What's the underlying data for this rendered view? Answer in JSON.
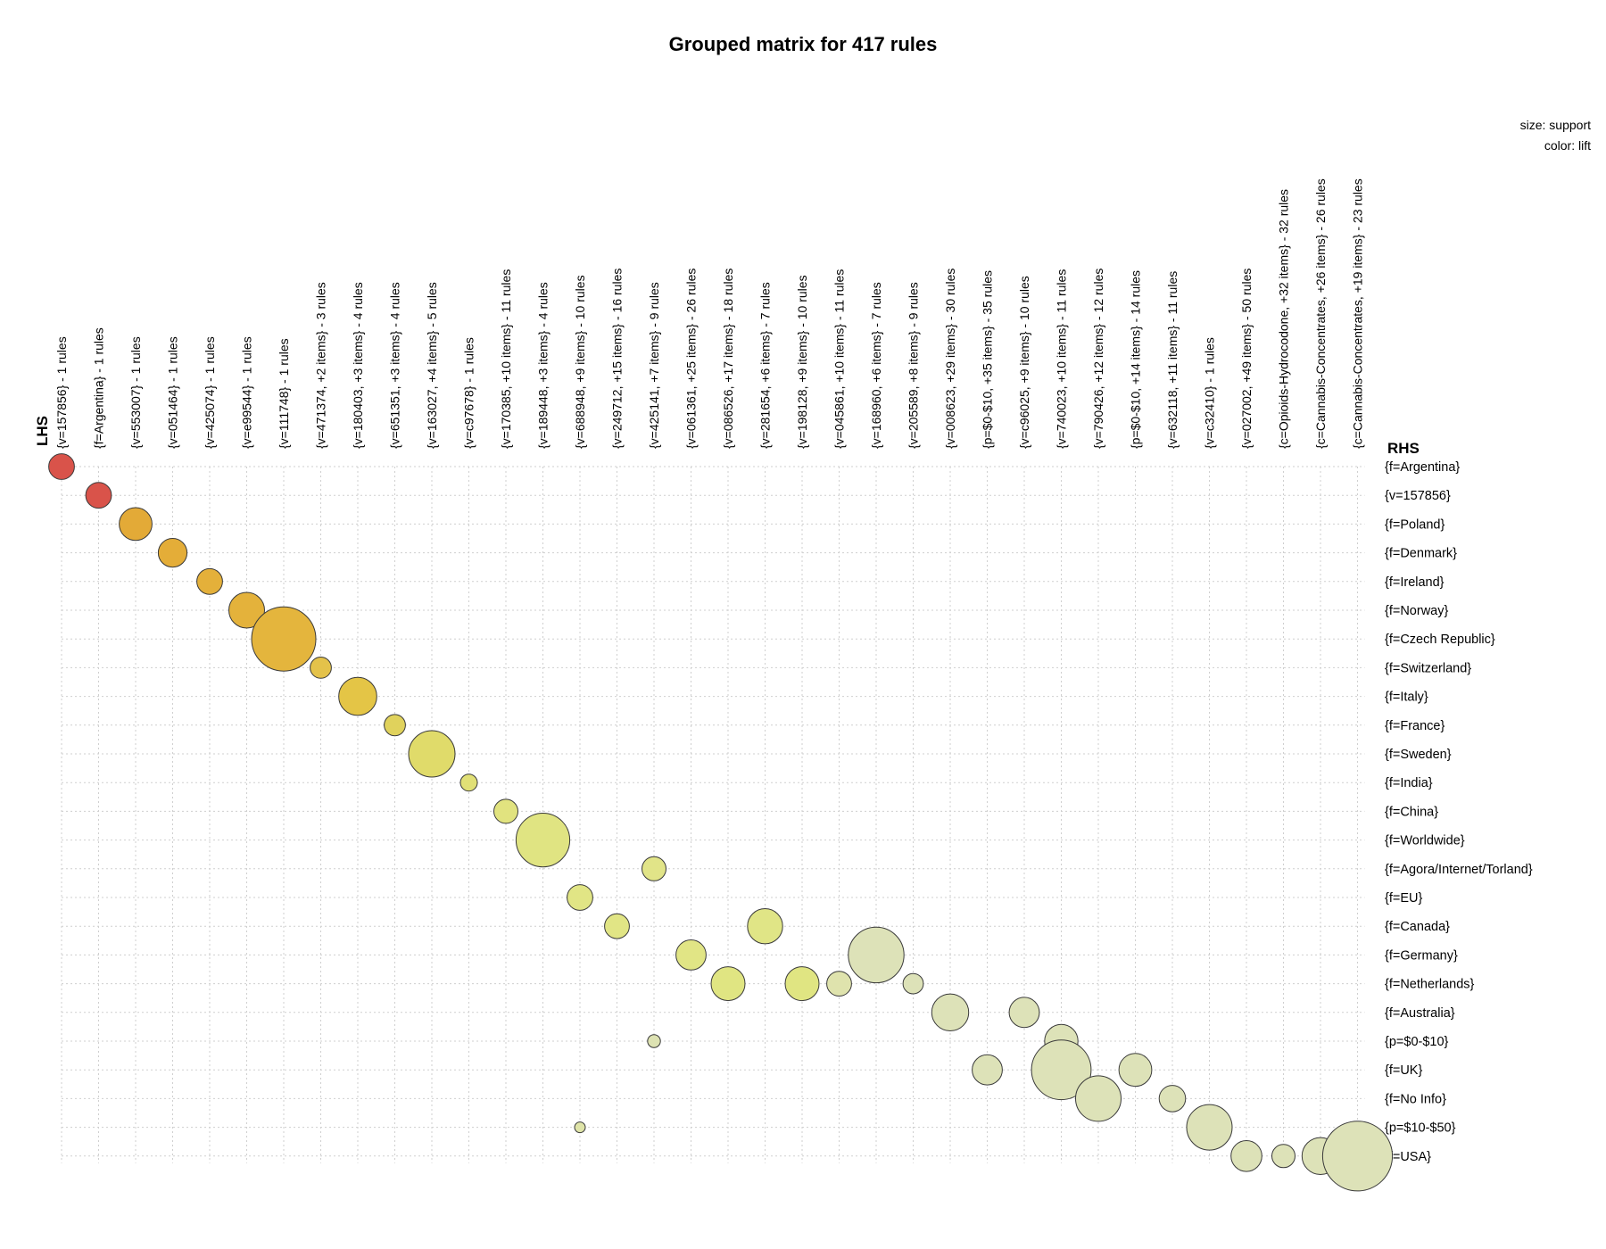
{
  "chart_data": {
    "type": "scatter",
    "title": "Grouped matrix for 417 rules",
    "lhs_label": "LHS",
    "rhs_label": "RHS",
    "legend": {
      "size": "size: support",
      "color": "color: lift"
    },
    "lhs_groups": [
      "{v=157856} - 1 rules",
      "{f=Argentina} - 1 rules",
      "{v=553007} - 1 rules",
      "{v=051464} - 1 rules",
      "{v=425074} - 1 rules",
      "{v=e99544} - 1 rules",
      "{v=111748} - 1 rules",
      "{v=471374, +2 items} - 3 rules",
      "{v=180403, +3 items} - 4 rules",
      "{v=651351, +3 items} - 4 rules",
      "{v=163027, +4 items} - 5 rules",
      "{v=c97678} - 1 rules",
      "{v=170385, +10 items} - 11 rules",
      "{v=189448, +3 items} - 4 rules",
      "{v=688948, +9 items} - 10 rules",
      "{v=249712, +15 items} - 16 rules",
      "{v=425141, +7 items} - 9 rules",
      "{v=061361, +25 items} - 26 rules",
      "{v=086526, +17 items} - 18 rules",
      "{v=281654, +6 items} - 7 rules",
      "{v=198128, +9 items} - 10 rules",
      "{v=045861, +10 items} - 11 rules",
      "{v=168960, +6 items} - 7 rules",
      "{v=205589, +8 items} - 9 rules",
      "{v=008623, +29 items} - 30 rules",
      "{p=$0-$10, +35 items} - 35 rules",
      "{v=c96025, +9 items} - 10 rules",
      "{v=740023, +10 items} - 11 rules",
      "{v=790426, +12 items} - 12 rules",
      "{p=$0-$10, +14 items} - 14 rules",
      "{v=632118, +11 items} - 11 rules",
      "{v=c32410} - 1 rules",
      "{v=027002, +49 items} - 50 rules",
      "{c=Opioids-Hydrocodone, +32 items} - 32 rules",
      "{c=Cannabis-Concentrates, +26 items} - 26 rules",
      "{c=Cannabis-Concentrates, +19 items} - 23 rules"
    ],
    "rhs_items": [
      "{f=Argentina}",
      "{v=157856}",
      "{f=Poland}",
      "{f=Denmark}",
      "{f=Ireland}",
      "{f=Norway}",
      "{f=Czech Republic}",
      "{f=Switzerland}",
      "{f=Italy}",
      "{f=France}",
      "{f=Sweden}",
      "{f=India}",
      "{f=China}",
      "{f=Worldwide}",
      "{f=Agora/Internet/Torland}",
      "{f=EU}",
      "{f=Canada}",
      "{f=Germany}",
      "{f=Netherlands}",
      "{f=Australia}",
      "{p=$0-$10}",
      "{f=UK}",
      "{f=No Info}",
      "{p=$10-$50}",
      "{f=USA}"
    ],
    "points": [
      {
        "lhs": 0,
        "rhs": 0,
        "support": 0.16,
        "color": "#d9534a"
      },
      {
        "lhs": 1,
        "rhs": 1,
        "support": 0.16,
        "color": "#d9534a"
      },
      {
        "lhs": 2,
        "rhs": 2,
        "support": 0.26,
        "color": "#e3aa37"
      },
      {
        "lhs": 3,
        "rhs": 3,
        "support": 0.2,
        "color": "#e4ad38"
      },
      {
        "lhs": 4,
        "rhs": 4,
        "support": 0.16,
        "color": "#e4b03a"
      },
      {
        "lhs": 5,
        "rhs": 5,
        "support": 0.31,
        "color": "#e4b23b"
      },
      {
        "lhs": 6,
        "rhs": 6,
        "support": 1.0,
        "color": "#e4b53d"
      },
      {
        "lhs": 7,
        "rhs": 7,
        "support": 0.11,
        "color": "#e4c24a"
      },
      {
        "lhs": 8,
        "rhs": 8,
        "support": 0.35,
        "color": "#e4c546"
      },
      {
        "lhs": 9,
        "rhs": 9,
        "support": 0.11,
        "color": "#e0d25c"
      },
      {
        "lhs": 10,
        "rhs": 10,
        "support": 0.52,
        "color": "#e0db6a"
      },
      {
        "lhs": 11,
        "rhs": 11,
        "support": 0.07,
        "color": "#e1e076"
      },
      {
        "lhs": 12,
        "rhs": 12,
        "support": 0.14,
        "color": "#e1e37f"
      },
      {
        "lhs": 13,
        "rhs": 13,
        "support": 0.7,
        "color": "#e0e482"
      },
      {
        "lhs": 14,
        "rhs": 23,
        "support": 0.001,
        "color": "#dfe4a8"
      },
      {
        "lhs": 16,
        "rhs": 14,
        "support": 0.14,
        "color": "#e1e488"
      },
      {
        "lhs": 16,
        "rhs": 20,
        "support": 0.04,
        "color": "#dde2b2"
      },
      {
        "lhs": 14,
        "rhs": 15,
        "support": 0.16,
        "color": "#e1e585"
      },
      {
        "lhs": 15,
        "rhs": 16,
        "support": 0.15,
        "color": "#e1e585"
      },
      {
        "lhs": 17,
        "rhs": 17,
        "support": 0.22,
        "color": "#e1e585"
      },
      {
        "lhs": 18,
        "rhs": 18,
        "support": 0.28,
        "color": "#e0e582"
      },
      {
        "lhs": 19,
        "rhs": 16,
        "support": 0.3,
        "color": "#e0e586"
      },
      {
        "lhs": 20,
        "rhs": 18,
        "support": 0.28,
        "color": "#e0e582"
      },
      {
        "lhs": 21,
        "rhs": 18,
        "support": 0.15,
        "color": "#dfe3ad"
      },
      {
        "lhs": 22,
        "rhs": 17,
        "support": 0.75,
        "color": "#dde2b8"
      },
      {
        "lhs": 23,
        "rhs": 18,
        "support": 0.1,
        "color": "#dde2b8"
      },
      {
        "lhs": 24,
        "rhs": 19,
        "support": 0.33,
        "color": "#dde2b8"
      },
      {
        "lhs": 26,
        "rhs": 19,
        "support": 0.22,
        "color": "#dde2b8"
      },
      {
        "lhs": 27,
        "rhs": 20,
        "support": 0.27,
        "color": "#dde2b8"
      },
      {
        "lhs": 25,
        "rhs": 21,
        "support": 0.22,
        "color": "#dde2b8"
      },
      {
        "lhs": 27,
        "rhs": 21,
        "support": 0.86,
        "color": "#dde2b8"
      },
      {
        "lhs": 29,
        "rhs": 21,
        "support": 0.26,
        "color": "#dde2b8"
      },
      {
        "lhs": 28,
        "rhs": 22,
        "support": 0.5,
        "color": "#dde2b8"
      },
      {
        "lhs": 30,
        "rhs": 22,
        "support": 0.17,
        "color": "#dde2b8"
      },
      {
        "lhs": 31,
        "rhs": 23,
        "support": 0.5,
        "color": "#dde2b8"
      },
      {
        "lhs": 32,
        "rhs": 24,
        "support": 0.23,
        "color": "#dde2b8"
      },
      {
        "lhs": 33,
        "rhs": 24,
        "support": 0.13,
        "color": "#dde2b8"
      },
      {
        "lhs": 34,
        "rhs": 24,
        "support": 0.33,
        "color": "#dde2b8"
      },
      {
        "lhs": 35,
        "rhs": 24,
        "support": 1.18,
        "color": "#dde2b8"
      }
    ]
  }
}
